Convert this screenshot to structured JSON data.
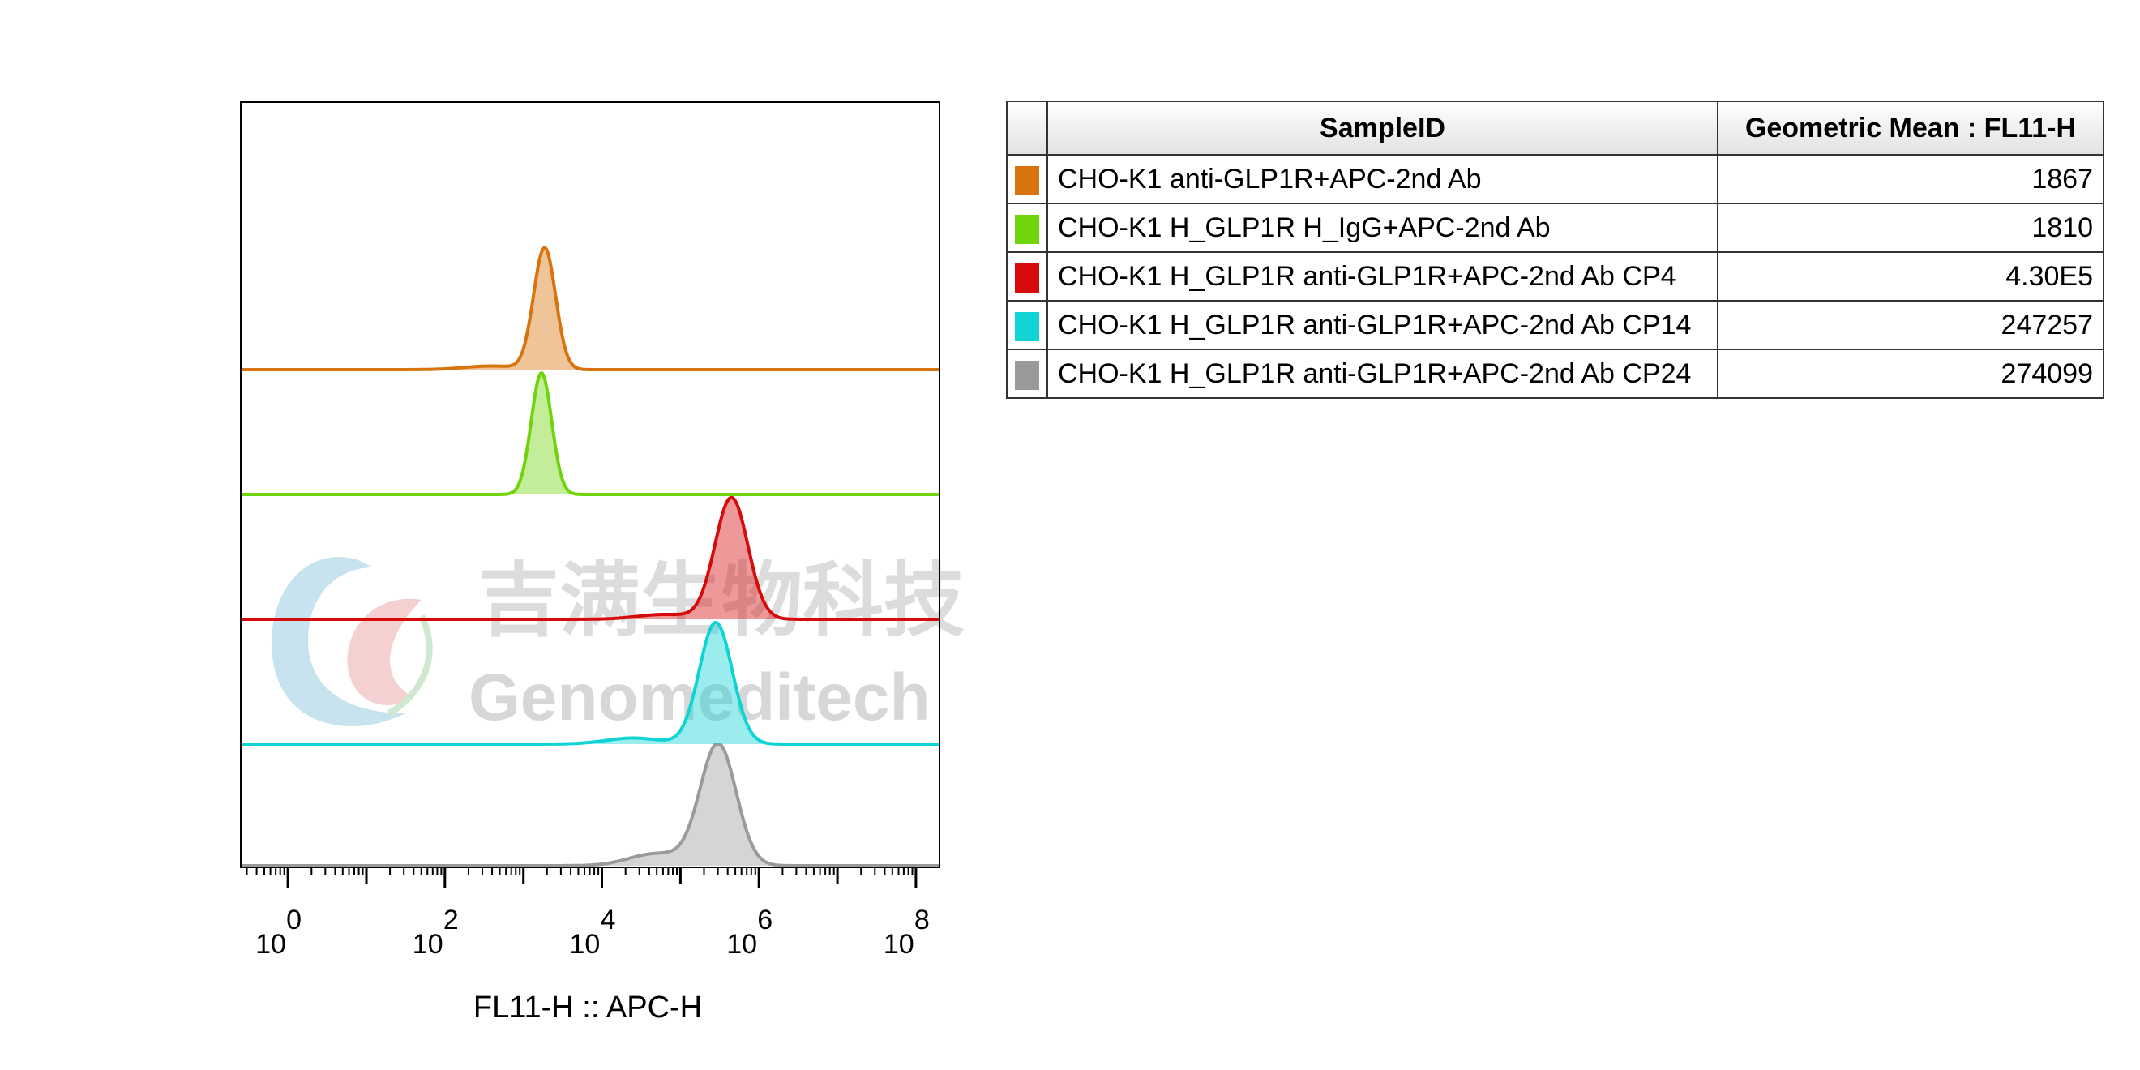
{
  "chart_data": {
    "type": "area",
    "title": "",
    "xlabel": "FL11-H :: APC-H",
    "ylabel": "",
    "x_scale": "log10",
    "xlim": [
      -0.6,
      8.3
    ],
    "x_ticks": [
      {
        "base": "10",
        "exp": "0"
      },
      {
        "base": "10",
        "exp": "2"
      },
      {
        "base": "10",
        "exp": "4"
      },
      {
        "base": "10",
        "exp": "6"
      },
      {
        "base": "10",
        "exp": "8"
      }
    ],
    "x_tick_values": [
      0,
      2,
      4,
      6,
      8
    ],
    "layout": "offset-histogram",
    "series": [
      {
        "name": "CHO-K1 anti-GLP1R+APC-2nd Ab",
        "color": "#d9730d",
        "peak_log": 3.27,
        "spread": 0.14,
        "shoulder": 0.03,
        "shoulder_log": 2.6,
        "relative_height": 1.0
      },
      {
        "name": "CHO-K1 H_GLP1R H_IgG+APC-2nd Ab",
        "color": "#6fd40c",
        "peak_log": 3.23,
        "spread": 0.13,
        "shoulder": 0.0,
        "shoulder_log": 2.6,
        "relative_height": 1.0
      },
      {
        "name": "CHO-K1 H_GLP1R anti-GLP1R+APC-2nd Ab CP4",
        "color": "#d60c0c",
        "peak_log": 5.65,
        "spread": 0.21,
        "shoulder": 0.04,
        "shoulder_log": 4.8,
        "relative_height": 1.0
      },
      {
        "name": "CHO-K1 H_GLP1R anti-GLP1R+APC-2nd Ab CP14",
        "color": "#10d4d4",
        "peak_log": 5.45,
        "spread": 0.21,
        "shoulder": 0.05,
        "shoulder_log": 4.4,
        "relative_height": 1.0
      },
      {
        "name": "CHO-K1 H_GLP1R anti-GLP1R+APC-2nd Ab CP24",
        "color": "#9a9a9a",
        "peak_log": 5.48,
        "spread": 0.23,
        "shoulder": 0.1,
        "shoulder_log": 4.7,
        "relative_height": 1.0
      }
    ]
  },
  "watermark": {
    "chinese": "吉满生物科技",
    "english": "Genomeditech"
  },
  "table": {
    "headers": [
      "",
      "SampleID",
      "Geometric Mean : FL11-H"
    ],
    "rows": [
      {
        "color": "#d9730d",
        "sample": "CHO-K1 anti-GLP1R+APC-2nd Ab",
        "mean": "1867"
      },
      {
        "color": "#6fd40c",
        "sample": "CHO-K1 H_GLP1R H_IgG+APC-2nd Ab",
        "mean": "1810"
      },
      {
        "color": "#d60c0c",
        "sample": "CHO-K1 H_GLP1R anti-GLP1R+APC-2nd Ab CP4",
        "mean": "4.30E5"
      },
      {
        "color": "#10d4d4",
        "sample": "CHO-K1 H_GLP1R anti-GLP1R+APC-2nd Ab CP14",
        "mean": "247257"
      },
      {
        "color": "#9a9a9a",
        "sample": "CHO-K1 H_GLP1R anti-GLP1R+APC-2nd Ab CP24",
        "mean": "274099"
      }
    ]
  }
}
